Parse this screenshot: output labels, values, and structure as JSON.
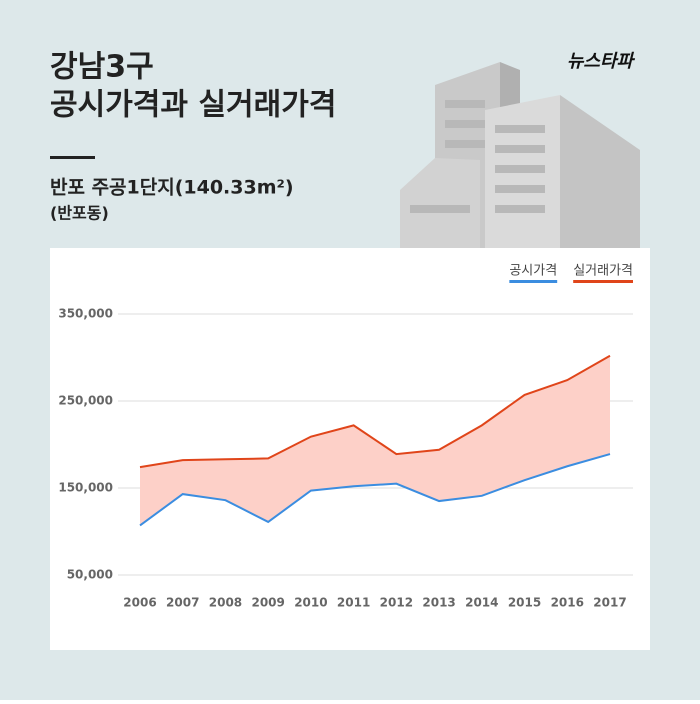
{
  "header": {
    "title_lines": [
      "강남3구",
      "공시가격과 실거래가격"
    ],
    "subtitle": "반포 주공1단지(140.33m²)",
    "location": "(반포동)",
    "logo": "뉴스타파"
  },
  "chart_data": {
    "type": "line",
    "categories": [
      "2006",
      "2007",
      "2008",
      "2009",
      "2010",
      "2011",
      "2012",
      "2013",
      "2014",
      "2015",
      "2016",
      "2017"
    ],
    "series": [
      {
        "name": "공시가격",
        "color": "#3b8de0",
        "values": [
          107000,
          143000,
          136000,
          111000,
          147000,
          152000,
          155000,
          135000,
          141000,
          159000,
          175000,
          189000
        ]
      },
      {
        "name": "실거래가격",
        "color": "#e0451a",
        "values": [
          174000,
          182000,
          183000,
          184000,
          209000,
          222000,
          189000,
          194000,
          222000,
          257000,
          274000,
          302000
        ]
      }
    ],
    "fill_between_color": "#fdd0c8",
    "ylim": [
      50000,
      350000
    ],
    "yticks": [
      {
        "value": 50000,
        "label": "50,000"
      },
      {
        "value": 150000,
        "label": "150,000"
      },
      {
        "value": 250000,
        "label": "250,000"
      },
      {
        "value": 350000,
        "label": "350,000"
      }
    ],
    "grid": true,
    "legend": "top-right"
  }
}
